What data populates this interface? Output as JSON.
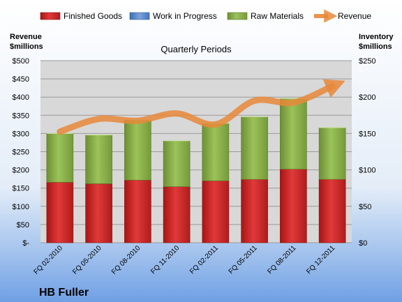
{
  "chart_data": {
    "type": "bar",
    "title": "Quarterly Periods",
    "company": "HB Fuller",
    "categories": [
      "FQ 02-2010",
      "FQ 05-2010",
      "FQ 08-2010",
      "FQ 11-2010",
      "FQ 02-2011",
      "FQ 05-2011",
      "FQ 08-2011",
      "FQ 12-2011"
    ],
    "series": [
      {
        "name": "Finished Goods",
        "axis": "right",
        "stack": "inventory",
        "color": "#cc2a2a",
        "values": [
          83,
          81,
          86,
          77,
          85,
          87,
          101,
          87
        ]
      },
      {
        "name": "Work in Progress",
        "axis": "right",
        "stack": "inventory",
        "color": "#5b86c6",
        "values": [
          0,
          0,
          0,
          0,
          0,
          0,
          0,
          0
        ]
      },
      {
        "name": "Raw Materials",
        "axis": "right",
        "stack": "inventory",
        "color": "#8db24e",
        "values": [
          67,
          67,
          83,
          63,
          79,
          86,
          97,
          71
        ]
      },
      {
        "name": "Revenue",
        "axis": "left",
        "type": "line",
        "color": "#e8883a",
        "values": [
          305,
          340,
          335,
          355,
          325,
          390,
          385,
          430
        ]
      }
    ],
    "left_axis": {
      "label_line1": "Revenue",
      "label_line2": "$millions",
      "ylim": [
        0,
        500
      ],
      "ticks": [
        "$-",
        "$50",
        "$100",
        "$150",
        "$200",
        "$250",
        "$300",
        "$350",
        "$400",
        "$450",
        "$500"
      ]
    },
    "right_axis": {
      "label_line1": "Inventory",
      "label_line2": "$millions",
      "ylim": [
        0,
        250
      ],
      "ticks": [
        "$0",
        "$50",
        "$100",
        "$150",
        "$200",
        "$250"
      ]
    },
    "grid": true,
    "legend_position": "top"
  }
}
